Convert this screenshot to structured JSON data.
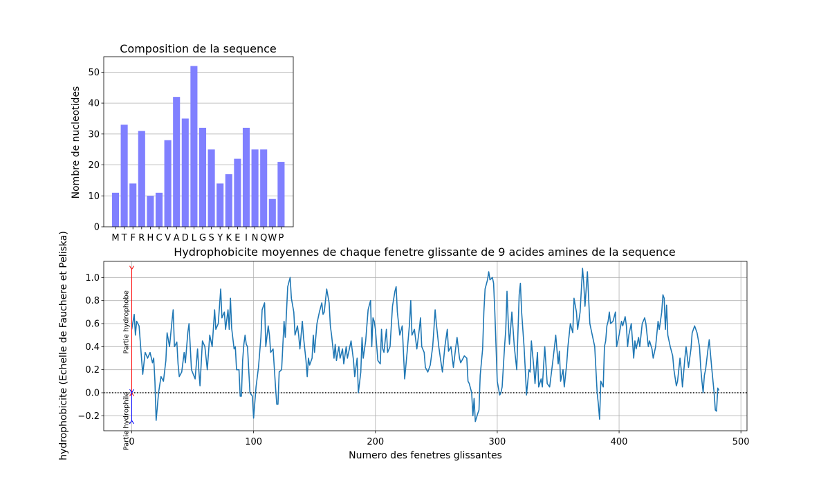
{
  "chart_data": [
    {
      "type": "bar",
      "title": "Composition de la sequence",
      "xlabel": "",
      "ylabel": "Nombre de nucleotides",
      "categories": [
        "M",
        "T",
        "F",
        "R",
        "H",
        "C",
        "V",
        "A",
        "D",
        "L",
        "G",
        "S",
        "Y",
        "K",
        "E",
        "I",
        "N",
        "Q",
        "W",
        "P"
      ],
      "values": [
        11,
        33,
        14,
        31,
        10,
        11,
        28,
        42,
        35,
        52,
        32,
        25,
        14,
        17,
        22,
        32,
        25,
        25,
        9,
        21
      ],
      "ylim": [
        0,
        55
      ],
      "yticks": [
        0,
        10,
        20,
        30,
        40,
        50
      ],
      "grid": "y",
      "color": "#8080ff"
    },
    {
      "type": "line",
      "title": "Hydrophobicite moyennes de chaque fenetre glissante de 9 acides amines de la sequence",
      "xlabel": "Numero des fenetres glissantes",
      "ylabel": "hydrophobicite (Echelle de Fauchere et Peliska)",
      "xlim": [
        -23,
        505
      ],
      "ylim": [
        -0.33,
        1.14
      ],
      "xticks": [
        0,
        100,
        200,
        300,
        400,
        500
      ],
      "yticks": [
        -0.2,
        0.0,
        0.2,
        0.4,
        0.6,
        0.8,
        1.0
      ],
      "ytick_labels": [
        "−0.2",
        "0.0",
        "0.2",
        "0.4",
        "0.6",
        "0.8",
        "1.0"
      ],
      "grid": "both",
      "color": "#1f77b4",
      "zero_line": {
        "y": 0,
        "style": "dotted",
        "color": "#000000"
      },
      "annotations": [
        {
          "label": "Partie hydrophobe",
          "x": 0,
          "y_from": 0.0,
          "y_to": 1.07,
          "color": "#ff0000"
        },
        {
          "label": "Partie hydrophile",
          "x": 0,
          "y_from": 0.0,
          "y_to": -0.24,
          "color": "#0000ff"
        }
      ],
      "knots": [
        [
          0,
          0.55
        ],
        [
          2,
          0.68
        ],
        [
          3,
          0.5
        ],
        [
          4,
          0.62
        ],
        [
          6,
          0.58
        ],
        [
          8,
          0.3
        ],
        [
          9,
          0.16
        ],
        [
          11,
          0.35
        ],
        [
          13,
          0.3
        ],
        [
          15,
          0.35
        ],
        [
          17,
          0.26
        ],
        [
          18,
          0.3
        ],
        [
          19,
          0.1
        ],
        [
          20,
          -0.24
        ],
        [
          22,
          0.0
        ],
        [
          24,
          0.14
        ],
        [
          26,
          0.1
        ],
        [
          28,
          0.28
        ],
        [
          29,
          0.52
        ],
        [
          31,
          0.4
        ],
        [
          33,
          0.62
        ],
        [
          34,
          0.72
        ],
        [
          35,
          0.4
        ],
        [
          37,
          0.44
        ],
        [
          38,
          0.25
        ],
        [
          39,
          0.14
        ],
        [
          41,
          0.18
        ],
        [
          43,
          0.35
        ],
        [
          44,
          0.26
        ],
        [
          46,
          0.52
        ],
        [
          47,
          0.6
        ],
        [
          49,
          0.2
        ],
        [
          52,
          0.12
        ],
        [
          54,
          0.38
        ],
        [
          55,
          0.2
        ],
        [
          56,
          0.06
        ],
        [
          58,
          0.45
        ],
        [
          60,
          0.4
        ],
        [
          62,
          0.2
        ],
        [
          64,
          0.5
        ],
        [
          66,
          0.4
        ],
        [
          68,
          0.72
        ],
        [
          69,
          0.55
        ],
        [
          71,
          0.6
        ],
        [
          73,
          0.9
        ],
        [
          74,
          0.65
        ],
        [
          76,
          0.7
        ],
        [
          77,
          0.55
        ],
        [
          79,
          0.72
        ],
        [
          80,
          0.55
        ],
        [
          81,
          0.82
        ],
        [
          82,
          0.56
        ],
        [
          84,
          0.38
        ],
        [
          85,
          0.4
        ],
        [
          86,
          0.2
        ],
        [
          88,
          0.2
        ],
        [
          89,
          -0.03
        ],
        [
          90,
          -0.03
        ],
        [
          91,
          0.28
        ],
        [
          92,
          0.42
        ],
        [
          93,
          0.5
        ],
        [
          94,
          0.42
        ],
        [
          95,
          0.4
        ],
        [
          96,
          0.2
        ],
        [
          97,
          0.0
        ],
        [
          99,
          -0.03
        ],
        [
          100,
          -0.22
        ],
        [
          102,
          0.05
        ],
        [
          104,
          0.22
        ],
        [
          106,
          0.48
        ],
        [
          107,
          0.72
        ],
        [
          109,
          0.78
        ],
        [
          110,
          0.4
        ],
        [
          112,
          0.58
        ],
        [
          113,
          0.5
        ],
        [
          114,
          0.35
        ],
        [
          116,
          0.38
        ],
        [
          118,
          0.05
        ],
        [
          119,
          -0.1
        ],
        [
          120,
          -0.1
        ],
        [
          121,
          0.18
        ],
        [
          123,
          0.2
        ],
        [
          125,
          0.62
        ],
        [
          126,
          0.48
        ],
        [
          128,
          0.92
        ],
        [
          130,
          1.0
        ],
        [
          131,
          0.82
        ],
        [
          133,
          0.7
        ],
        [
          134,
          0.5
        ],
        [
          136,
          0.58
        ],
        [
          137,
          0.5
        ],
        [
          138,
          0.38
        ],
        [
          140,
          0.62
        ],
        [
          141,
          0.48
        ],
        [
          143,
          0.28
        ],
        [
          144,
          0.14
        ],
        [
          145,
          0.3
        ],
        [
          146,
          0.24
        ],
        [
          148,
          0.3
        ],
        [
          149,
          0.5
        ],
        [
          150,
          0.35
        ],
        [
          152,
          0.6
        ],
        [
          154,
          0.7
        ],
        [
          156,
          0.78
        ],
        [
          157,
          0.68
        ],
        [
          158,
          0.7
        ],
        [
          160,
          0.9
        ],
        [
          162,
          0.78
        ],
        [
          163,
          0.58
        ],
        [
          164,
          0.5
        ],
        [
          166,
          0.3
        ],
        [
          167,
          0.42
        ],
        [
          168,
          0.28
        ],
        [
          170,
          0.4
        ],
        [
          171,
          0.3
        ],
        [
          173,
          0.38
        ],
        [
          174,
          0.25
        ],
        [
          176,
          0.4
        ],
        [
          177,
          0.3
        ],
        [
          179,
          0.4
        ],
        [
          180,
          0.45
        ],
        [
          182,
          0.28
        ],
        [
          183,
          0.14
        ],
        [
          185,
          0.3
        ],
        [
          186,
          0.0
        ],
        [
          188,
          0.18
        ],
        [
          189,
          0.48
        ],
        [
          190,
          0.3
        ],
        [
          192,
          0.45
        ],
        [
          194,
          0.72
        ],
        [
          196,
          0.8
        ],
        [
          197,
          0.4
        ],
        [
          198,
          0.65
        ],
        [
          199,
          0.62
        ],
        [
          200,
          0.55
        ],
        [
          202,
          0.28
        ],
        [
          204,
          0.25
        ],
        [
          205,
          0.55
        ],
        [
          206,
          0.38
        ],
        [
          207,
          0.35
        ],
        [
          209,
          0.55
        ],
        [
          210,
          0.35
        ],
        [
          212,
          0.4
        ],
        [
          214,
          0.75
        ],
        [
          216,
          0.88
        ],
        [
          217,
          0.92
        ],
        [
          218,
          0.7
        ],
        [
          220,
          0.5
        ],
        [
          222,
          0.58
        ],
        [
          223,
          0.35
        ],
        [
          224,
          0.12
        ],
        [
          226,
          0.35
        ],
        [
          228,
          0.6
        ],
        [
          229,
          0.8
        ],
        [
          230,
          0.5
        ],
        [
          232,
          0.55
        ],
        [
          234,
          0.38
        ],
        [
          236,
          0.55
        ],
        [
          237,
          0.65
        ],
        [
          238,
          0.4
        ],
        [
          240,
          0.35
        ],
        [
          241,
          0.22
        ],
        [
          243,
          0.18
        ],
        [
          245,
          0.24
        ],
        [
          247,
          0.4
        ],
        [
          248,
          0.55
        ],
        [
          249,
          0.72
        ],
        [
          250,
          0.6
        ],
        [
          252,
          0.4
        ],
        [
          254,
          0.25
        ],
        [
          255,
          0.18
        ],
        [
          257,
          0.4
        ],
        [
          259,
          0.55
        ],
        [
          260,
          0.36
        ],
        [
          262,
          0.4
        ],
        [
          264,
          0.22
        ],
        [
          266,
          0.4
        ],
        [
          267,
          0.48
        ],
        [
          269,
          0.3
        ],
        [
          270,
          0.26
        ],
        [
          272,
          0.3
        ],
        [
          273,
          0.32
        ],
        [
          275,
          0.3
        ],
        [
          276,
          0.1
        ],
        [
          277,
          0.08
        ],
        [
          279,
          0.0
        ],
        [
          280,
          -0.2
        ],
        [
          281,
          -0.05
        ],
        [
          282,
          -0.25
        ],
        [
          284,
          -0.18
        ],
        [
          285,
          -0.15
        ],
        [
          286,
          0.15
        ],
        [
          288,
          0.38
        ],
        [
          289,
          0.7
        ],
        [
          290,
          0.9
        ],
        [
          292,
          0.98
        ],
        [
          293,
          1.05
        ],
        [
          294,
          0.98
        ],
        [
          296,
          1.0
        ],
        [
          297,
          0.95
        ],
        [
          298,
          0.7
        ],
        [
          299,
          0.4
        ],
        [
          300,
          0.1
        ],
        [
          302,
          -0.02
        ],
        [
          303,
          0.0
        ],
        [
          304,
          0.05
        ],
        [
          306,
          0.4
        ],
        [
          307,
          0.55
        ],
        [
          308,
          0.88
        ],
        [
          309,
          0.62
        ],
        [
          310,
          0.42
        ],
        [
          312,
          0.7
        ],
        [
          313,
          0.55
        ],
        [
          314,
          0.4
        ],
        [
          316,
          0.2
        ],
        [
          318,
          0.85
        ],
        [
          319,
          0.95
        ],
        [
          320,
          0.7
        ],
        [
          322,
          0.4
        ],
        [
          323,
          0.2
        ],
        [
          324,
          -0.02
        ],
        [
          326,
          0.2
        ],
        [
          327,
          0.18
        ],
        [
          328,
          0.45
        ],
        [
          330,
          0.22
        ],
        [
          331,
          0.08
        ],
        [
          333,
          0.35
        ],
        [
          334,
          0.05
        ],
        [
          336,
          0.12
        ],
        [
          337,
          0.05
        ],
        [
          339,
          0.4
        ],
        [
          341,
          0.08
        ],
        [
          343,
          0.05
        ],
        [
          345,
          0.22
        ],
        [
          347,
          0.4
        ],
        [
          348,
          0.5
        ],
        [
          350,
          0.25
        ],
        [
          351,
          0.36
        ],
        [
          352,
          0.1
        ],
        [
          354,
          0.2
        ],
        [
          355,
          0.05
        ],
        [
          357,
          0.25
        ],
        [
          358,
          0.4
        ],
        [
          360,
          0.6
        ],
        [
          362,
          0.52
        ],
        [
          363,
          0.82
        ],
        [
          365,
          0.7
        ],
        [
          366,
          0.55
        ],
        [
          368,
          0.7
        ],
        [
          370,
          1.08
        ],
        [
          371,
          0.95
        ],
        [
          372,
          0.75
        ],
        [
          374,
          1.05
        ],
        [
          375,
          0.82
        ],
        [
          376,
          0.6
        ],
        [
          378,
          0.5
        ],
        [
          380,
          0.4
        ],
        [
          381,
          0.2
        ],
        [
          382,
          0.0
        ],
        [
          383,
          -0.1
        ],
        [
          384,
          -0.23
        ],
        [
          385,
          0.1
        ],
        [
          387,
          0.05
        ],
        [
          388,
          0.4
        ],
        [
          389,
          0.45
        ],
        [
          390,
          0.58
        ],
        [
          391,
          0.62
        ],
        [
          392,
          0.7
        ],
        [
          393,
          0.6
        ],
        [
          395,
          0.62
        ],
        [
          397,
          0.7
        ],
        [
          398,
          0.4
        ],
        [
          400,
          0.5
        ],
        [
          402,
          0.62
        ],
        [
          403,
          0.58
        ],
        [
          405,
          0.66
        ],
        [
          406,
          0.58
        ],
        [
          407,
          0.4
        ],
        [
          408,
          0.5
        ],
        [
          410,
          0.6
        ],
        [
          412,
          0.3
        ],
        [
          413,
          0.45
        ],
        [
          414,
          0.38
        ],
        [
          416,
          0.48
        ],
        [
          417,
          0.4
        ],
        [
          419,
          0.6
        ],
        [
          421,
          0.65
        ],
        [
          422,
          0.6
        ],
        [
          424,
          0.4
        ],
        [
          425,
          0.45
        ],
        [
          427,
          0.38
        ],
        [
          428,
          0.3
        ],
        [
          430,
          0.4
        ],
        [
          432,
          0.62
        ],
        [
          433,
          0.55
        ],
        [
          435,
          0.7
        ],
        [
          436,
          0.85
        ],
        [
          437,
          0.82
        ],
        [
          438,
          0.55
        ],
        [
          439,
          0.76
        ],
        [
          440,
          0.5
        ],
        [
          442,
          0.4
        ],
        [
          444,
          0.32
        ],
        [
          445,
          0.2
        ],
        [
          447,
          0.06
        ],
        [
          448,
          0.1
        ],
        [
          450,
          0.3
        ],
        [
          451,
          0.2
        ],
        [
          452,
          0.05
        ],
        [
          454,
          0.3
        ],
        [
          455,
          0.4
        ],
        [
          457,
          0.22
        ],
        [
          459,
          0.38
        ],
        [
          460,
          0.52
        ],
        [
          462,
          0.58
        ],
        [
          464,
          0.52
        ],
        [
          466,
          0.4
        ],
        [
          467,
          0.22
        ],
        [
          468,
          0.1
        ],
        [
          469,
          0.0
        ],
        [
          470,
          0.15
        ],
        [
          471,
          0.2
        ],
        [
          473,
          0.38
        ],
        [
          474,
          0.46
        ],
        [
          476,
          0.22
        ],
        [
          478,
          0.0
        ],
        [
          479,
          -0.15
        ],
        [
          480,
          -0.16
        ],
        [
          481,
          0.04
        ],
        [
          482,
          0.02
        ]
      ]
    }
  ]
}
